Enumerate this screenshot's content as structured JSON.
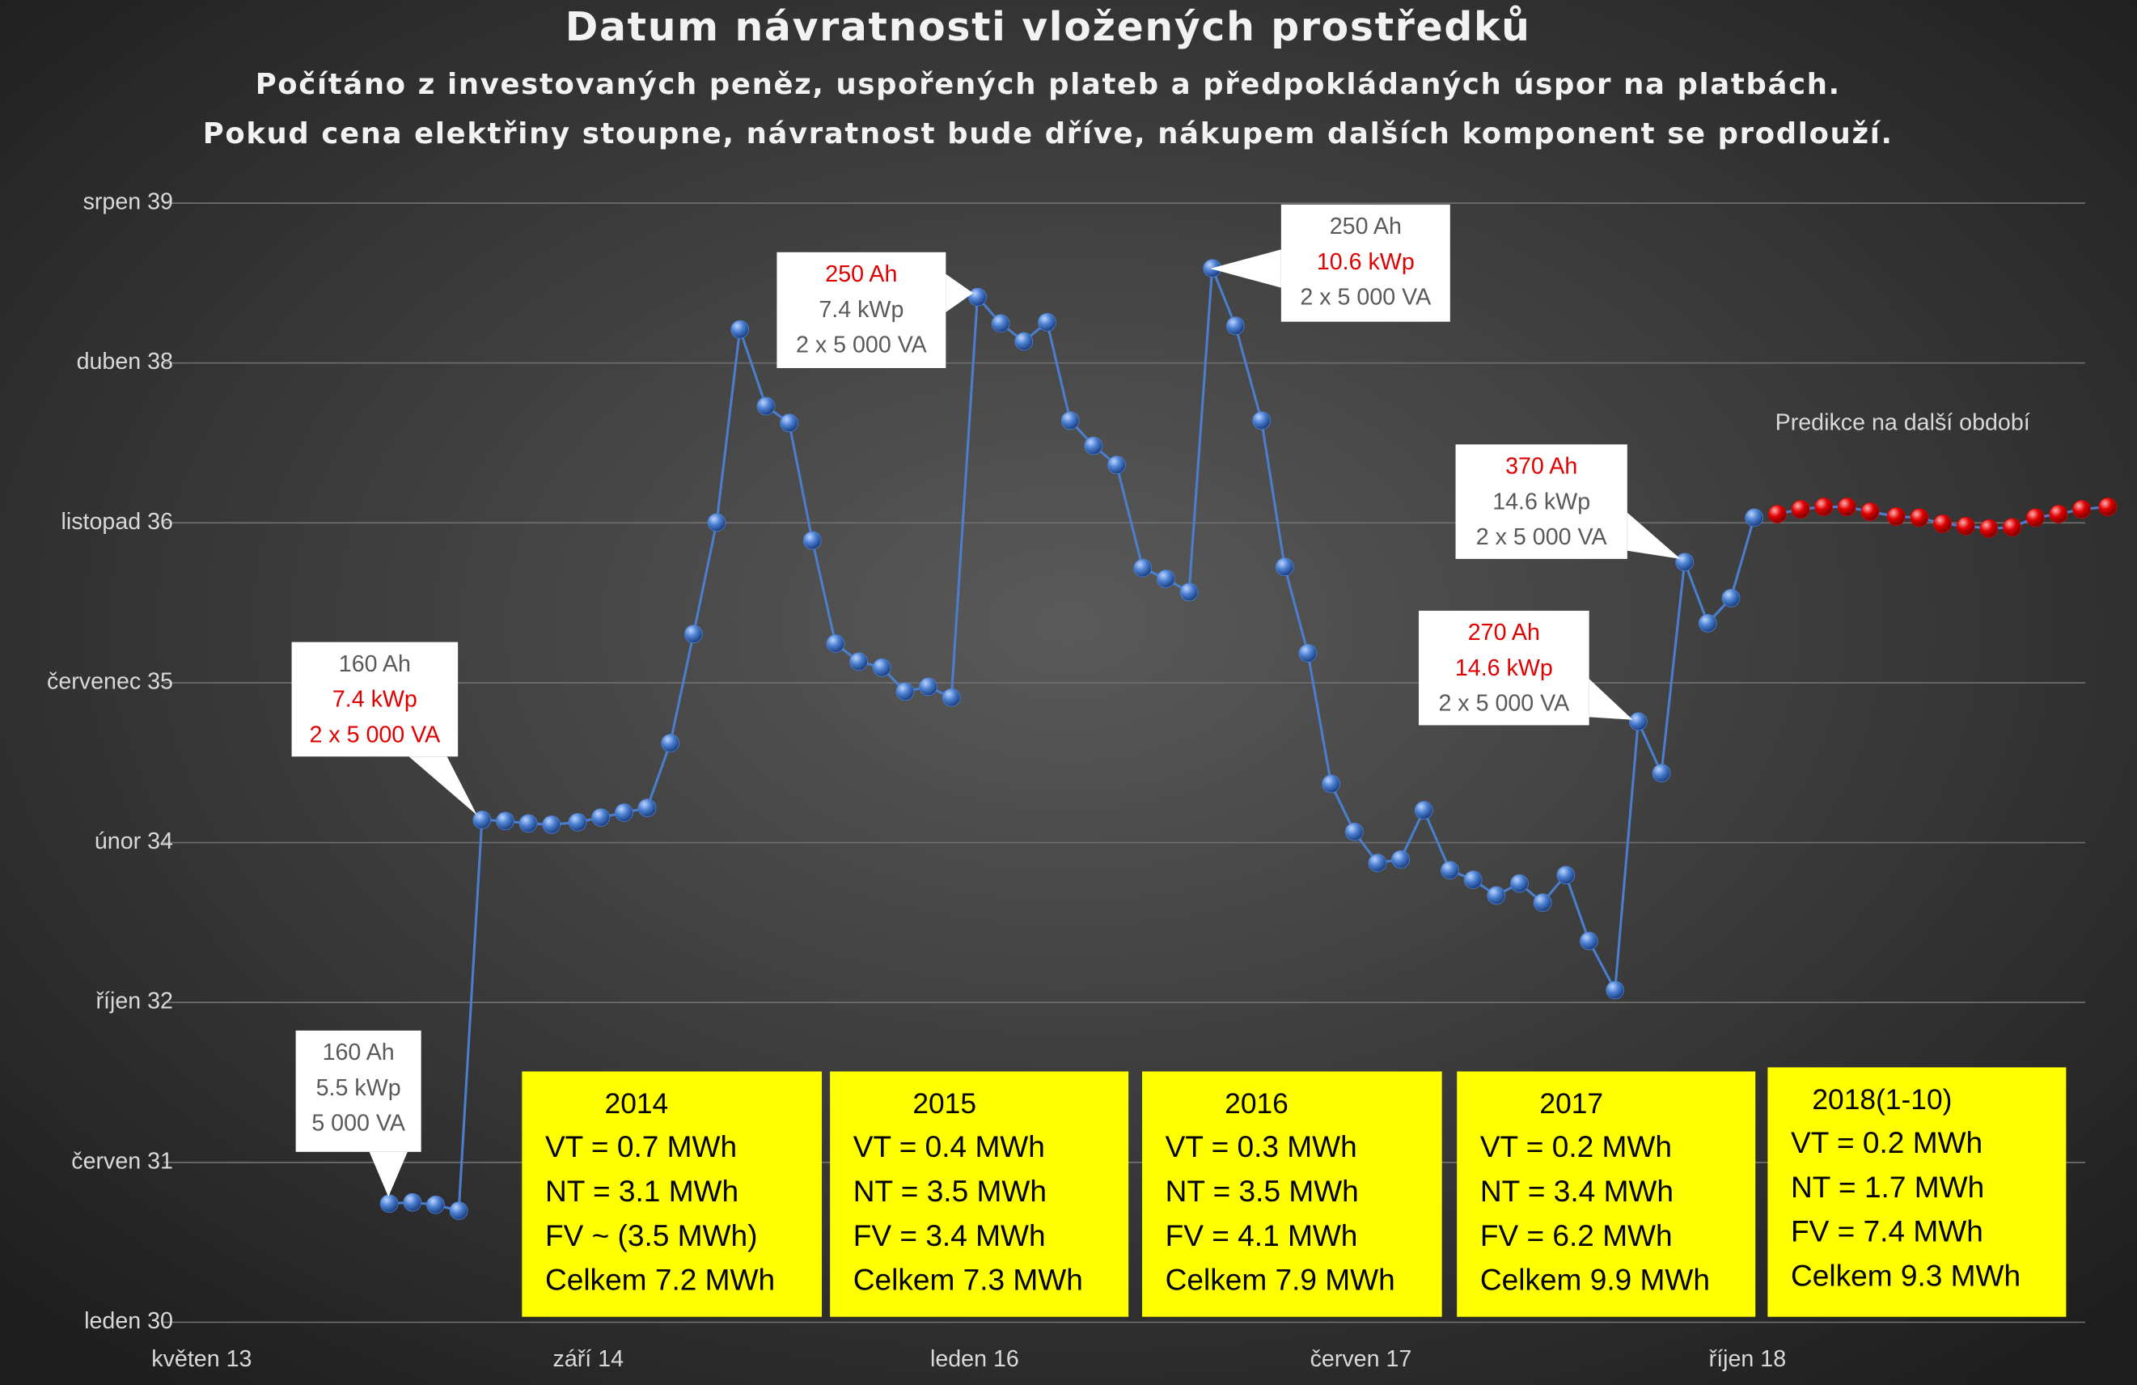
{
  "chart_data": {
    "type": "line",
    "title": "Datum návratnosti vložených prostředků",
    "subtitle": [
      "Počítáno z investovaných peněz, uspořených plateb a předpokládaných úspor na platbách.",
      "Pokud cena elektřiny stoupne, návratnost bude dříve, nákupem dalších komponent se prodlouží."
    ],
    "xlim": [
      2013.333,
      2019.95
    ],
    "xticks": [
      {
        "value": 2013.333,
        "label": "květen 13"
      },
      {
        "value": 2014.667,
        "label": "září 14"
      },
      {
        "value": 2016,
        "label": "leden 16"
      },
      {
        "value": 2017.333,
        "label": "červen 17"
      },
      {
        "value": 2018.667,
        "label": "říjen 18"
      }
    ],
    "ylim": [
      2030,
      2039.333
    ],
    "yticks": [
      {
        "value": 2030,
        "label": "leden 30"
      },
      {
        "value": 2031.333,
        "label": "červen 31"
      },
      {
        "value": 2032.667,
        "label": "říjen 32"
      },
      {
        "value": 2034,
        "label": "únor 34"
      },
      {
        "value": 2035.333,
        "label": "červenec 35"
      },
      {
        "value": 2036.667,
        "label": "listopad 36"
      },
      {
        "value": 2038,
        "label": "duben 38"
      },
      {
        "value": 2039.333,
        "label": "srpen 39"
      }
    ],
    "grid": true,
    "series": [
      {
        "color": "#4a7fd0",
        "x": [
          2013.98,
          2014.06,
          2014.14,
          2014.22,
          2014.3,
          2014.38,
          2014.46,
          2014.54,
          2014.63,
          2014.71,
          2014.79,
          2014.87,
          2014.95,
          2015.03,
          2015.11,
          2015.19,
          2015.28,
          2015.36,
          2015.44,
          2015.52,
          2015.6,
          2015.68,
          2015.76,
          2015.84,
          2015.92,
          2016.01,
          2016.09,
          2016.17,
          2016.25,
          2016.33,
          2016.41,
          2016.49,
          2016.58,
          2016.66,
          2016.74,
          2016.82,
          2016.9,
          2016.99,
          2017.07,
          2017.15,
          2017.23,
          2017.31,
          2017.39,
          2017.47,
          2017.55,
          2017.64,
          2017.72,
          2017.8,
          2017.88,
          2017.96,
          2018.04,
          2018.12,
          2018.21,
          2018.29,
          2018.37,
          2018.45,
          2018.53,
          2018.61,
          2018.69
        ],
        "values": [
          2030.99,
          2031.0,
          2030.98,
          2030.93,
          2034.19,
          2034.18,
          2034.16,
          2034.15,
          2034.17,
          2034.21,
          2034.25,
          2034.29,
          2034.83,
          2035.74,
          2036.67,
          2038.28,
          2037.64,
          2037.5,
          2036.52,
          2035.66,
          2035.51,
          2035.46,
          2035.26,
          2035.3,
          2035.21,
          2038.55,
          2038.33,
          2038.18,
          2038.34,
          2037.52,
          2037.31,
          2037.15,
          2036.29,
          2036.2,
          2036.09,
          2038.79,
          2038.31,
          2037.52,
          2036.3,
          2035.58,
          2034.49,
          2034.09,
          2033.83,
          2033.86,
          2034.27,
          2033.77,
          2033.69,
          2033.56,
          2033.66,
          2033.5,
          2033.73,
          2033.18,
          2032.77,
          2035.01,
          2034.58,
          2036.34,
          2035.83,
          2036.04,
          2036.71
        ]
      },
      {
        "color": "#e00000",
        "x": [
          2018.77,
          2018.85,
          2018.93,
          2019.01,
          2019.09,
          2019.18,
          2019.26,
          2019.34,
          2019.42,
          2019.5,
          2019.58,
          2019.66,
          2019.74,
          2019.82,
          2019.91
        ],
        "values": [
          2036.74,
          2036.78,
          2036.8,
          2036.8,
          2036.76,
          2036.72,
          2036.71,
          2036.66,
          2036.64,
          2036.62,
          2036.63,
          2036.71,
          2036.74,
          2036.78,
          2036.8
        ]
      }
    ],
    "prediction_label": "Predikce na další období",
    "callouts": [
      {
        "lines": [
          {
            "text": "160 Ah",
            "color": "#595959"
          },
          {
            "text": "5.5 kWp",
            "color": "#595959"
          },
          {
            "text": "5 000 VA",
            "color": "#595959"
          }
        ]
      },
      {
        "lines": [
          {
            "text": "160 Ah",
            "color": "#595959"
          },
          {
            "text": "7.4 kWp",
            "color": "#e00000"
          },
          {
            "text": "2 x 5 000 VA",
            "color": "#e00000"
          }
        ]
      },
      {
        "lines": [
          {
            "text": "250 Ah",
            "color": "#e00000"
          },
          {
            "text": "7.4 kWp",
            "color": "#595959"
          },
          {
            "text": "2 x 5 000 VA",
            "color": "#595959"
          }
        ]
      },
      {
        "lines": [
          {
            "text": "250 Ah",
            "color": "#595959"
          },
          {
            "text": "10.6 kWp",
            "color": "#e00000"
          },
          {
            "text": "2 x 5 000 VA",
            "color": "#595959"
          }
        ]
      },
      {
        "lines": [
          {
            "text": "370 Ah",
            "color": "#e00000"
          },
          {
            "text": "14.6 kWp",
            "color": "#595959"
          },
          {
            "text": "2 x 5 000 VA",
            "color": "#595959"
          }
        ]
      },
      {
        "lines": [
          {
            "text": "270 Ah",
            "color": "#e00000"
          },
          {
            "text": "14.6 kWp",
            "color": "#e00000"
          },
          {
            "text": "2 x 5 000 VA",
            "color": "#595959"
          }
        ]
      }
    ],
    "stats": [
      {
        "title": "2014",
        "lines": [
          "VT = 0.7 MWh",
          "NT = 3.1 MWh",
          "FV ~ (3.5 MWh)",
          "Celkem 7.2 MWh"
        ]
      },
      {
        "title": "2015",
        "lines": [
          "VT = 0.4 MWh",
          "NT = 3.5 MWh",
          "FV = 3.4 MWh",
          "Celkem 7.3 MWh"
        ]
      },
      {
        "title": "2016",
        "lines": [
          "VT = 0.3 MWh",
          "NT = 3.5 MWh",
          "FV = 4.1 MWh",
          "Celkem 7.9 MWh"
        ]
      },
      {
        "title": "2017",
        "lines": [
          "VT = 0.2 MWh",
          "NT = 3.4 MWh",
          "FV = 6.2 MWh",
          "Celkem 9.9 MWh"
        ]
      },
      {
        "title": "2018(1-10)",
        "lines": [
          "VT = 0.2 MWh",
          "NT = 1.7 MWh",
          "FV = 7.4 MWh",
          "Celkem 9.3 MWh"
        ]
      }
    ]
  }
}
